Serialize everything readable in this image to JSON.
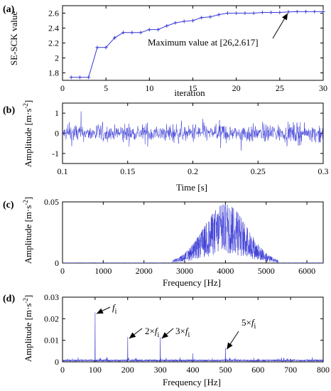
{
  "chart_data": [
    {
      "panel": "(a)",
      "type": "line",
      "xlabel": "iteration",
      "ylabel": "SE-SCK value",
      "xlim": [
        0,
        30
      ],
      "ylim": [
        1.7,
        2.7
      ],
      "xticks": [
        "0",
        "5",
        "10",
        "15",
        "20",
        "25",
        "30"
      ],
      "yticks": [
        "1.8",
        "2",
        "2.2",
        "2.4",
        "2.6"
      ],
      "grid": false,
      "series": [
        {
          "color": "#3b3bd6",
          "marker": "star",
          "x": [
            1,
            2,
            3,
            4,
            5,
            6,
            7,
            8,
            9,
            10,
            11,
            12,
            13,
            14,
            15,
            16,
            17,
            18,
            19,
            20,
            21,
            22,
            23,
            24,
            25,
            26,
            27,
            28,
            29,
            30
          ],
          "y": [
            1.74,
            1.74,
            1.74,
            2.14,
            2.14,
            2.27,
            2.34,
            2.34,
            2.34,
            2.38,
            2.38,
            2.43,
            2.47,
            2.49,
            2.5,
            2.54,
            2.55,
            2.58,
            2.6,
            2.6,
            2.6,
            2.6,
            2.61,
            2.61,
            2.61,
            2.617,
            2.62,
            2.62,
            2.62,
            2.62
          ]
        }
      ],
      "annotations": [
        {
          "text": "Maximum value at [26,2.617]",
          "arrow_to": [
            26,
            2.617
          ]
        }
      ]
    },
    {
      "panel": "(b)",
      "type": "line",
      "description_of_series": "random vibration signal, amplitude roughly within ±1",
      "xlabel": "Time [s]",
      "ylabel": "Amplitude [m·s",
      "ylabel_sup": "-2",
      "ylabel_close": "]",
      "xlim": [
        0.1,
        0.3
      ],
      "ylim": [
        -1.5,
        1.5
      ],
      "xticks": [
        "0.1",
        "0.15",
        "0.2",
        "0.25",
        "0.3"
      ],
      "yticks": [
        "-1",
        "0",
        "1"
      ],
      "series": [
        {
          "color": "#3b3bd6",
          "noise_amplitude": 0.4,
          "peak_amplitude": 1.1
        }
      ]
    },
    {
      "panel": "(c)",
      "type": "line",
      "xlabel": "Frequency [Hz]",
      "ylabel": "Amplitude [m·s",
      "ylabel_sup": "-2",
      "ylabel_close": "]",
      "xlim": [
        0,
        6400
      ],
      "ylim": [
        0,
        0.05
      ],
      "xticks": [
        "0",
        "1000",
        "2000",
        "3000",
        "4000",
        "5000",
        "6000"
      ],
      "yticks": [
        "0",
        "0.05"
      ],
      "series": [
        {
          "color": "#3b3bd6",
          "band_center": 4000,
          "band_halfwidth": 1300,
          "peak": 0.048
        }
      ]
    },
    {
      "panel": "(d)",
      "type": "line",
      "xlabel": "Frequency [Hz]",
      "ylabel": "Amplitude [m·s",
      "ylabel_sup": "-2",
      "ylabel_close": "]",
      "xlim": [
        0,
        800
      ],
      "ylim": [
        0,
        0.03
      ],
      "xticks": [
        "0",
        "100",
        "200",
        "300",
        "400",
        "500",
        "600",
        "700",
        "800"
      ],
      "yticks": [
        "0",
        "0.01",
        "0.02",
        "0.03"
      ],
      "series": [
        {
          "color": "#3b3bd6"
        }
      ],
      "peaks": [
        {
          "x": 100,
          "y": 0.023
        },
        {
          "x": 200,
          "y": 0.0115
        },
        {
          "x": 300,
          "y": 0.0115
        },
        {
          "x": 400,
          "y": 0.004
        },
        {
          "x": 500,
          "y": 0.0065
        },
        {
          "x": 600,
          "y": 0.0015
        }
      ],
      "annotations": [
        {
          "pre": "",
          "mid": "f",
          "sub": "i",
          "arrow_to": [
            100,
            0.023
          ]
        },
        {
          "pre": "2×",
          "mid": "f",
          "sub": "i",
          "arrow_to": [
            200,
            0.0115
          ]
        },
        {
          "pre": "3×",
          "mid": "f",
          "sub": "i",
          "arrow_to": [
            300,
            0.0115
          ]
        },
        {
          "pre": "5×",
          "mid": "f",
          "sub": "i",
          "arrow_to": [
            500,
            0.0065
          ]
        }
      ]
    }
  ]
}
